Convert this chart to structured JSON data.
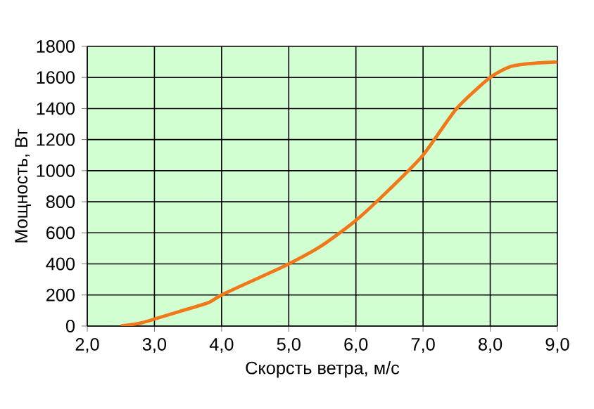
{
  "chart_data": {
    "type": "line",
    "xlabel": "Скорсть ветра, м/с",
    "ylabel": "Мощность, Вт",
    "x": [
      2.5,
      2.8,
      3.0,
      3.5,
      3.8,
      4.0,
      4.5,
      5.0,
      5.5,
      6.0,
      6.5,
      7.0,
      7.5,
      8.0,
      8.3,
      8.6,
      9.0
    ],
    "series": [
      {
        "color": "#f07818",
        "values": [
          0,
          20,
          45,
          110,
          150,
          200,
          300,
          400,
          520,
          680,
          880,
          1100,
          1400,
          1600,
          1670,
          1690,
          1700
        ]
      }
    ],
    "xlim": [
      2,
      9
    ],
    "ylim": [
      0,
      1800
    ],
    "xticks": [
      {
        "value": 2,
        "label": "2,0"
      },
      {
        "value": 3,
        "label": "3,0"
      },
      {
        "value": 4,
        "label": "4,0"
      },
      {
        "value": 5,
        "label": "5,0"
      },
      {
        "value": 6,
        "label": "6,0"
      },
      {
        "value": 7,
        "label": "7,0"
      },
      {
        "value": 8,
        "label": "8,0"
      },
      {
        "value": 9,
        "label": "9,0"
      }
    ],
    "yticks": [
      0,
      200,
      400,
      600,
      800,
      1000,
      1200,
      1400,
      1600,
      1800
    ],
    "grid": true,
    "marker": "none",
    "line_style": "solid"
  }
}
